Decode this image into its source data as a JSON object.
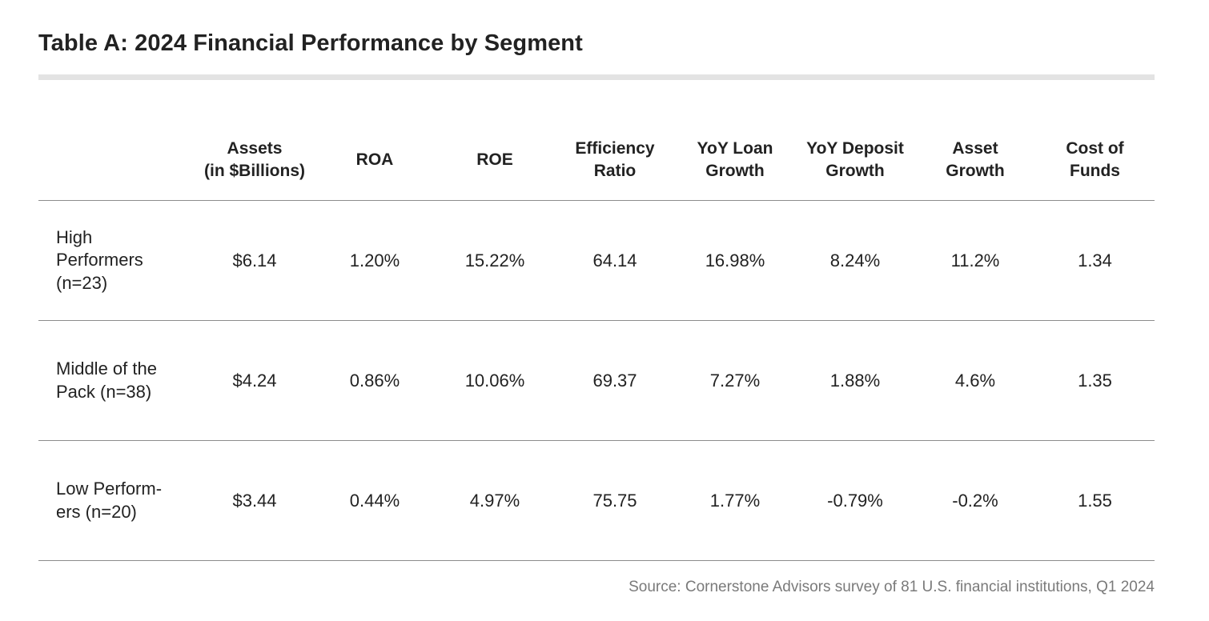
{
  "title": "Table A: 2024 Financial Performance by Segment",
  "columns": [
    {
      "line1": "Assets",
      "line2": "(in $Billions)"
    },
    {
      "line1": "ROA",
      "line2": ""
    },
    {
      "line1": "ROE",
      "line2": ""
    },
    {
      "line1": "Efficiency",
      "line2": "Ratio"
    },
    {
      "line1": "YoY Loan",
      "line2": "Growth"
    },
    {
      "line1": "YoY Deposit",
      "line2": "Growth"
    },
    {
      "line1": "Asset",
      "line2": "Growth"
    },
    {
      "line1": "Cost of",
      "line2": "Funds"
    }
  ],
  "rows": [
    {
      "label_lines": [
        "High",
        "Performers",
        "(n=23)"
      ],
      "values": [
        "$6.14",
        "1.20%",
        "15.22%",
        "64.14",
        "16.98%",
        "8.24%",
        "11.2%",
        "1.34"
      ]
    },
    {
      "label_lines": [
        "Middle of the",
        "Pack (n=38)"
      ],
      "values": [
        "$4.24",
        "0.86%",
        "10.06%",
        "69.37",
        "7.27%",
        "1.88%",
        "4.6%",
        "1.35"
      ]
    },
    {
      "label_lines": [
        "Low Perform-",
        "ers (n=20)"
      ],
      "values": [
        "$3.44",
        "0.44%",
        "4.97%",
        "75.75",
        "1.77%",
        "-0.79%",
        "-0.2%",
        "1.55"
      ]
    }
  ],
  "source": "Source: Cornerstone Advisors survey of 81 U.S. financial institutions, Q1 2024"
}
